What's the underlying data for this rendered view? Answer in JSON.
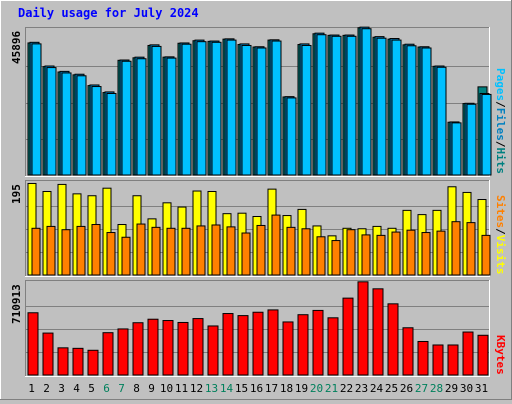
{
  "chart_data": {
    "title": "Daily usage for July 2024",
    "type": "bar",
    "categories": [
      "1",
      "2",
      "3",
      "4",
      "5",
      "6",
      "7",
      "8",
      "9",
      "10",
      "11",
      "12",
      "13",
      "14",
      "15",
      "16",
      "17",
      "18",
      "19",
      "20",
      "21",
      "22",
      "23",
      "24",
      "25",
      "26",
      "27",
      "28",
      "29",
      "30",
      "31"
    ],
    "weekend_days": [
      "6",
      "7",
      "13",
      "14",
      "20",
      "21",
      "27",
      "28"
    ],
    "colors": {
      "background": "#c0c0c0",
      "hits": "#008080",
      "files": "#0080c0",
      "pages": "#00c0ff",
      "visits": "#ffff00",
      "sites": "#ff8000",
      "kbytes": "#ff0000",
      "weekday_label": "#000000",
      "weekend_label": "#00805c"
    },
    "panels": [
      {
        "id": "hits-files-pages",
        "ymax_label": "45896",
        "ymax": 45896,
        "legend": [
          {
            "text": "Pages",
            "color": "#00c0ff"
          },
          {
            "text": "Files",
            "color": "#0080c0"
          },
          {
            "text": "Hits",
            "color": "#008080"
          }
        ],
        "series": [
          {
            "name": "Hits",
            "values": [
              41800,
              34300,
              32600,
              31700,
              28300,
              26100,
              36300,
              37100,
              41000,
              37300,
              41700,
              42500,
              42300,
              43000,
              41300,
              40500,
              42700,
              24700,
              41300,
              44700,
              44200,
              44200,
              46600,
              43600,
              43000,
              41200,
              40500,
              34400,
              16700,
              22600,
              27900
            ]
          },
          {
            "name": "Files",
            "values": [
              42000,
              34500,
              32800,
              31900,
              28500,
              26300,
              36400,
              37300,
              41200,
              37400,
              41800,
              42700,
              42400,
              43100,
              41500,
              40600,
              42800,
              24800,
              41500,
              44900,
              44300,
              44300,
              46800,
              43800,
              43200,
              41400,
              40600,
              34500,
              16800,
              22700,
              25800
            ]
          },
          {
            "name": "Pages",
            "values": [
              41500,
              34000,
              32300,
              31400,
              28000,
              25800,
              36000,
              36800,
              40700,
              37000,
              41400,
              42200,
              42000,
              42700,
              41000,
              40200,
              42400,
              24400,
              41000,
              44400,
              43900,
              43900,
              46300,
              43300,
              42700,
              40900,
              40200,
              34100,
              16500,
              22400,
              25500
            ]
          }
        ]
      },
      {
        "id": "visits-sites",
        "ymax_label": "195",
        "ymax": 195,
        "legend": [
          {
            "text": "Sites",
            "color": "#ff8000"
          },
          {
            "text": "Visits",
            "color": "#ffff00"
          }
        ],
        "series": [
          {
            "name": "Visits",
            "values": [
              194,
              177,
              192,
              172,
              168,
              184,
              107,
              168,
              119,
              153,
              144,
              178,
              177,
              130,
              131,
              124,
              182,
              126,
              139,
              104,
              83,
              99,
              98,
              103,
              99,
              137,
              128,
              137,
              187,
              175,
              160
            ]
          },
          {
            "name": "Sites",
            "values": [
              99,
              103,
              96,
              103,
              107,
              90,
              80,
              108,
              101,
              99,
              99,
              104,
              106,
              102,
              89,
              105,
              127,
              101,
              98,
              81,
              73,
              96,
              85,
              84,
              91,
              95,
              90,
              93,
              113,
              111,
              84
            ]
          }
        ]
      },
      {
        "id": "kbytes",
        "ymax_label": "710913",
        "ymax": 710913,
        "legend": [
          {
            "text": "KBytes",
            "color": "#ff0000"
          }
        ],
        "series": [
          {
            "name": "KBytes",
            "values": [
              481000,
              324000,
              210000,
              206000,
              191000,
              327000,
              356000,
              404000,
              431000,
              421000,
              406000,
              436000,
              379000,
              475000,
              459000,
              485000,
              503000,
              410000,
              466000,
              499000,
              442000,
              594000,
              720000,
              666000,
              550000,
              365000,
              259000,
              232000,
              232000,
              332000,
              307000
            ]
          }
        ]
      }
    ]
  }
}
